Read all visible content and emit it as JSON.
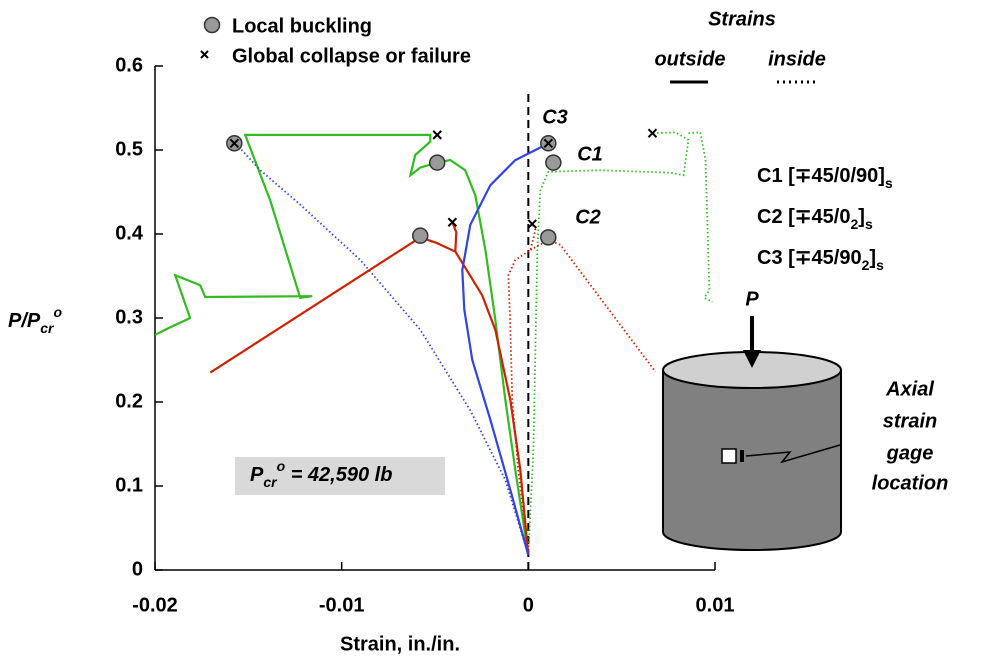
{
  "chart_data": {
    "type": "line",
    "x_label": "Strain, in./in.",
    "y_label": {
      "main": "P/P",
      "sub": "cr",
      "sup": "o"
    },
    "xlim": [
      -0.02,
      0.01
    ],
    "ylim": [
      0,
      0.6
    ],
    "xticks": [
      -0.02,
      -0.01,
      0,
      0.01
    ],
    "yticks": [
      0,
      0.1,
      0.2,
      0.3,
      0.4,
      0.5,
      0.6
    ],
    "series": [
      {
        "color": "#33bb22",
        "dashed": false,
        "x": [
          0,
          -0.0007,
          -0.00123,
          -0.00177,
          -0.0023,
          -0.00284,
          -0.00338,
          -0.00418,
          -0.00488,
          -0.00579,
          -0.00632,
          -0.00606,
          -0.00525,
          -0.00525,
          -0.01517,
          -0.01383,
          -0.01222,
          -0.01158,
          -0.01731,
          -0.01758,
          -0.01892,
          -0.01812,
          -0.01946,
          -0.01999
        ],
        "y": [
          0.018,
          0.119,
          0.202,
          0.298,
          0.381,
          0.446,
          0.476,
          0.488,
          0.485,
          0.479,
          0.47,
          0.494,
          0.51,
          0.518,
          0.518,
          0.44,
          0.324,
          0.326,
          0.325,
          0.339,
          0.351,
          0.3,
          0.286,
          0.28
        ]
      },
      {
        "color": "#33bb22",
        "dashed": true,
        "x": [
          0,
          0.00027,
          0.00038,
          0.00048,
          0.00064,
          0.00107,
          0.00386,
          0.00761,
          0.00831,
          0.00858,
          0.00788,
          0.00665,
          null,
          0.00858,
          0.00922,
          0.00949,
          0.0097,
          0.00943,
          0.00986
        ],
        "y": [
          0.018,
          0.143,
          0.262,
          0.381,
          0.452,
          0.474,
          0.476,
          0.473,
          0.47,
          0.512,
          0.521,
          0.52,
          null,
          0.52,
          0.521,
          0.488,
          0.333,
          0.324,
          0.319
        ]
      },
      {
        "color": "#cc2200",
        "dashed": false,
        "x": [
          0,
          -0.00043,
          -0.00096,
          -0.00177,
          -0.00247,
          -0.00338,
          -0.00391,
          -0.00386,
          -0.00407,
          null,
          -0.00391,
          -0.00498,
          -0.00579,
          -0.01704
        ],
        "y": [
          0.018,
          0.119,
          0.202,
          0.286,
          0.327,
          0.36,
          0.379,
          0.402,
          0.414,
          null,
          0.379,
          0.39,
          0.396,
          0.235
        ]
      },
      {
        "color": "#cc2200",
        "dashed": true,
        "x": [
          0,
          -0.00054,
          -0.00086,
          -0.00096,
          -0.00107,
          -0.0007,
          0.00011,
          0.00038,
          0.00021,
          null,
          0.00011,
          0.00107,
          0.00172,
          0.00681
        ],
        "y": [
          0.018,
          0.119,
          0.202,
          0.286,
          0.351,
          0.369,
          0.381,
          0.405,
          0.412,
          null,
          0.381,
          0.393,
          0.387,
          0.236
        ]
      },
      {
        "color": "#3344dd",
        "dashed": false,
        "x": [
          0,
          -0.00096,
          -0.00204,
          -0.003,
          -0.00343,
          -0.00354,
          -0.00311,
          -0.00204,
          -0.0007,
          0.00091
        ],
        "y": [
          0.018,
          0.095,
          0.179,
          0.25,
          0.31,
          0.357,
          0.411,
          0.458,
          0.488,
          0.506
        ]
      },
      {
        "color": "#3344dd",
        "dashed": true,
        "x": [
          0,
          -0.00123,
          -0.00311,
          -0.00579,
          -0.009,
          -0.01222,
          -0.01436,
          -0.01544
        ],
        "y": [
          0.018,
          0.107,
          0.19,
          0.286,
          0.369,
          0.435,
          0.476,
          0.502
        ]
      }
    ],
    "local_buckling": {
      "x": [
        -0.01575,
        -0.00488,
        -0.00579,
        0.00107,
        0.00134,
        0.00107
      ],
      "y": [
        0.508,
        0.485,
        0.398,
        0.508,
        0.485,
        0.396
      ]
    },
    "global_collapse": {
      "x": [
        -0.01575,
        -0.00488,
        -0.00407,
        0.00107,
        0.00665,
        0.00021
      ],
      "y": [
        0.508,
        0.518,
        0.414,
        0.508,
        0.52,
        0.412
      ]
    },
    "legend": {
      "local_buckling": "Local buckling",
      "global_collapse": "Global collapse or failure",
      "strains": "Strains",
      "outside": "outside",
      "inside": "inside"
    },
    "curve_labels": [
      "C3",
      "C1",
      "C2"
    ],
    "configs": [
      [
        "C1 [∓45/0/90]",
        "s"
      ],
      [
        "C2 [∓45/0",
        "2",
        "]",
        "s"
      ],
      [
        "C3 [∓45/90",
        "2",
        "]",
        "s"
      ]
    ],
    "annotation": {
      "base": "P",
      "sub": "cr",
      "sup": "o",
      "rest": " = 42,590 lb"
    },
    "load_label": "P",
    "gage_label": [
      "Axial",
      "strain",
      "gage",
      "location"
    ]
  }
}
